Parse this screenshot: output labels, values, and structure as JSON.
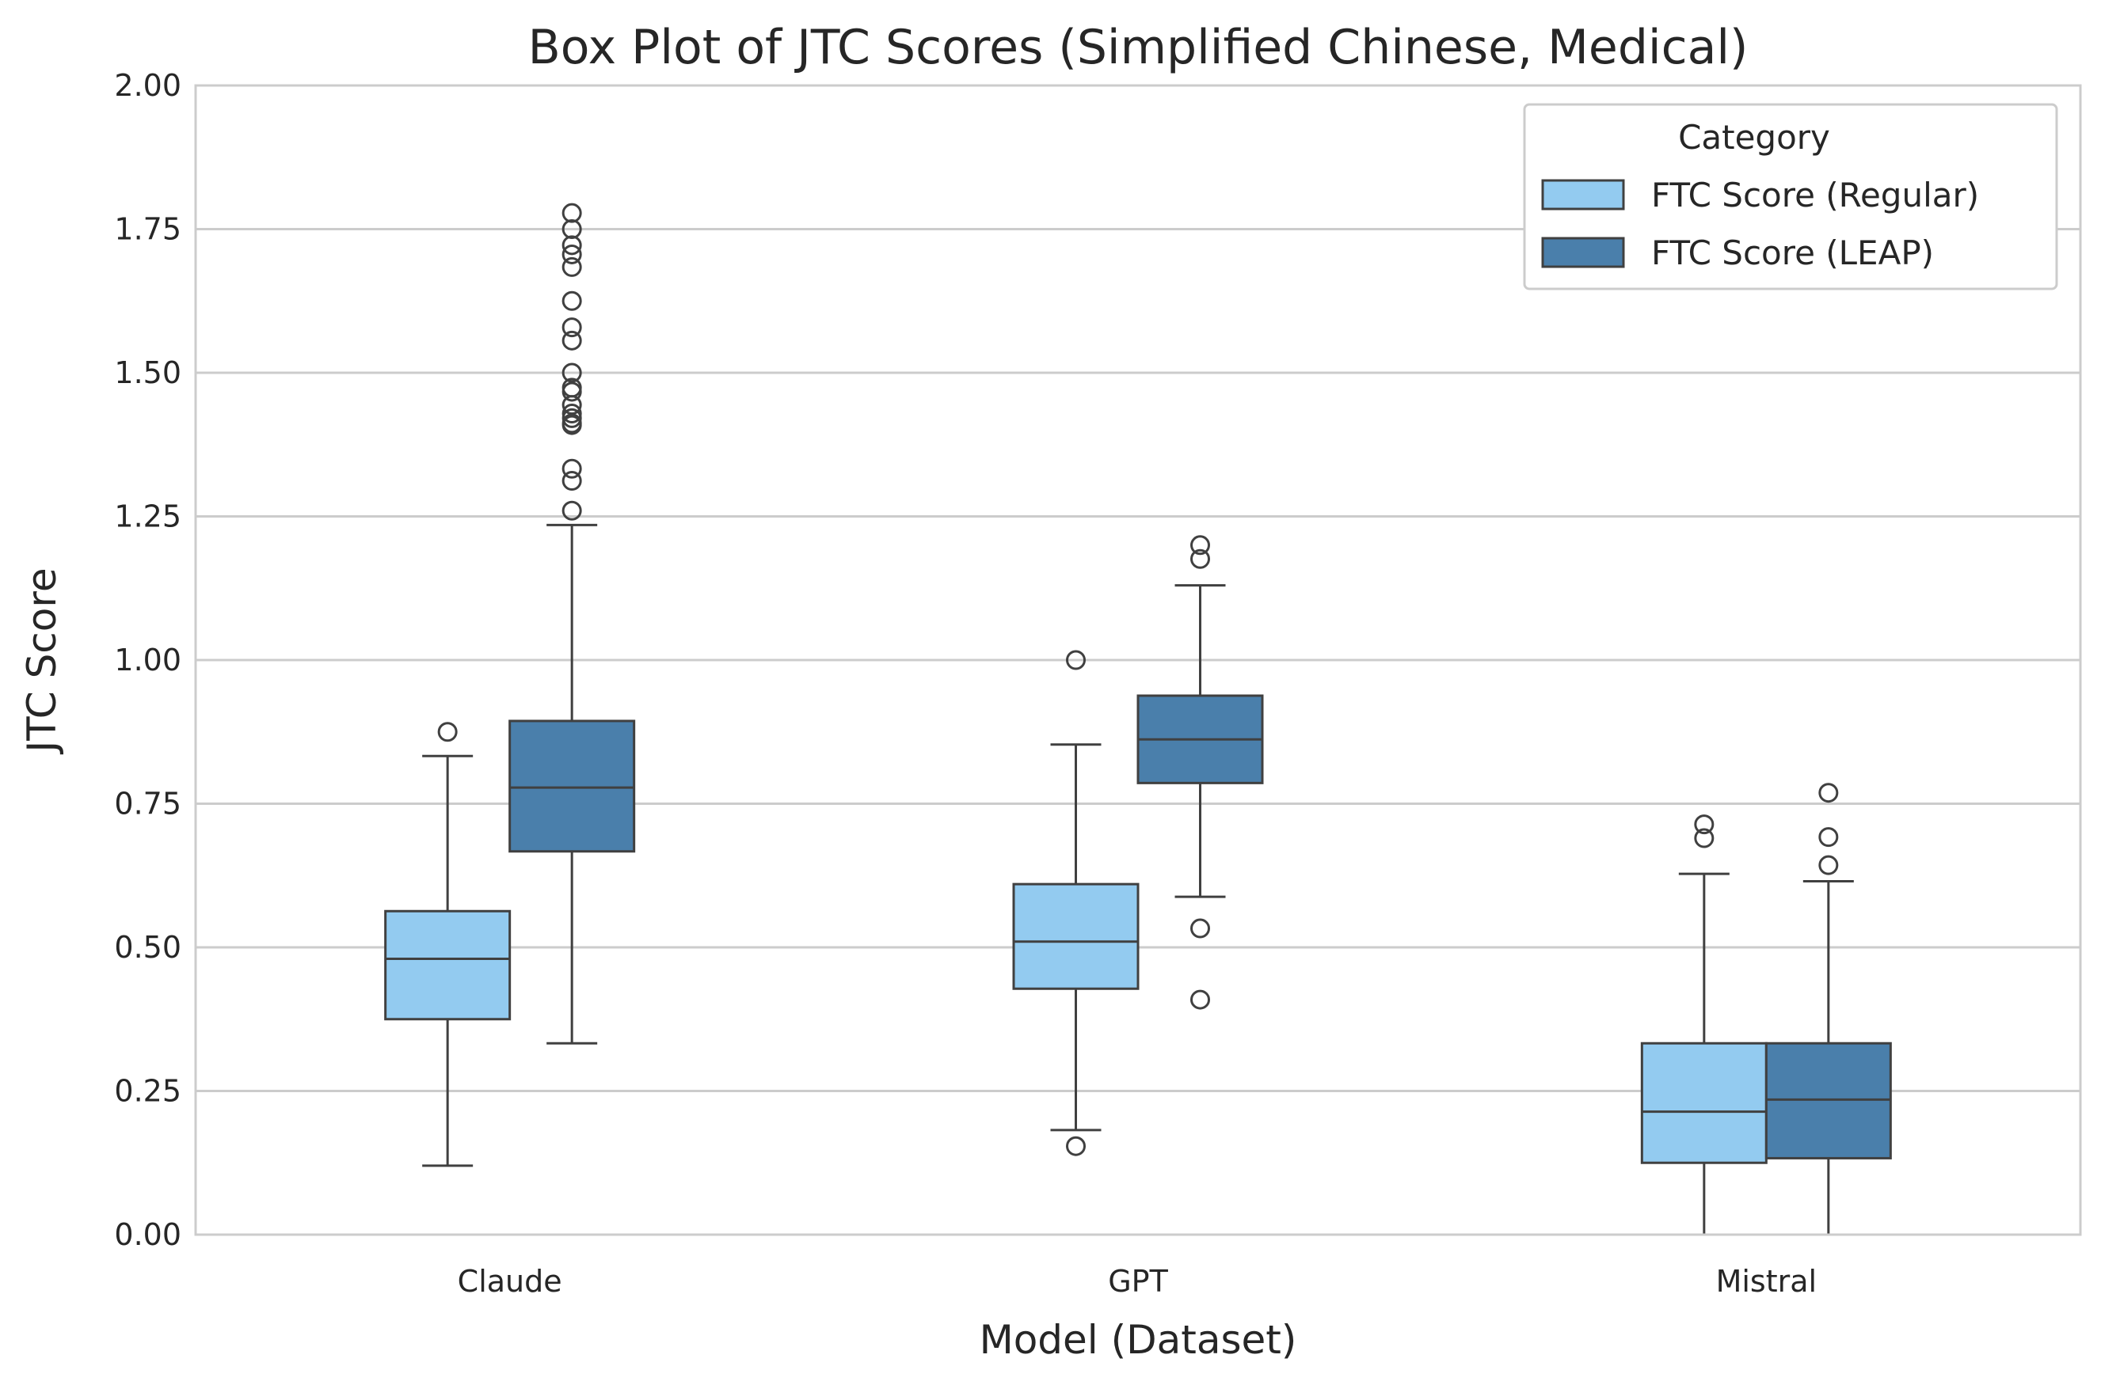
{
  "chart_data": {
    "type": "box",
    "title": "Box Plot of JTC Scores (Simplified Chinese, Medical)",
    "xlabel": "Model (Dataset)",
    "ylabel": "JTC Score",
    "ylim": [
      0,
      2
    ],
    "yticks": [
      "0.00",
      "0.25",
      "0.50",
      "0.75",
      "1.00",
      "1.25",
      "1.50",
      "1.75",
      "2.00"
    ],
    "grid": true,
    "legend_title": "Category",
    "legend_position": "top-right",
    "categories": [
      "Claude",
      "GPT",
      "Mistral"
    ],
    "series": [
      {
        "name": "FTC Score (Regular)",
        "color": "#93cbf0",
        "boxes": [
          {
            "category": "Claude",
            "whisker_low": 0.12,
            "q1": 0.375,
            "median": 0.48,
            "q3": 0.563,
            "whisker_high": 0.833,
            "outliers": [
              0.875
            ]
          },
          {
            "category": "GPT",
            "whisker_low": 0.182,
            "q1": 0.428,
            "median": 0.51,
            "q3": 0.61,
            "whisker_high": 0.853,
            "outliers": [
              1.0,
              0.154
            ]
          },
          {
            "category": "Mistral",
            "whisker_low": 0.0,
            "q1": 0.125,
            "median": 0.214,
            "q3": 0.333,
            "whisker_high": 0.628,
            "outliers": [
              0.714,
              0.69
            ]
          }
        ]
      },
      {
        "name": "FTC Score (LEAP)",
        "color": "#4a7fab",
        "boxes": [
          {
            "category": "Claude",
            "whisker_low": 0.333,
            "q1": 0.667,
            "median": 0.778,
            "q3": 0.894,
            "whisker_high": 1.235,
            "outliers": [
              1.778,
              1.75,
              1.722,
              1.706,
              1.684,
              1.625,
              1.579,
              1.556,
              1.5,
              1.474,
              1.467,
              1.444,
              1.429,
              1.421,
              1.412,
              1.409,
              1.333,
              1.312,
              1.26
            ]
          },
          {
            "category": "GPT",
            "whisker_low": 0.588,
            "q1": 0.786,
            "median": 0.862,
            "q3": 0.938,
            "whisker_high": 1.13,
            "outliers": [
              1.2,
              1.176,
              0.533,
              0.409
            ]
          },
          {
            "category": "Mistral",
            "whisker_low": 0.0,
            "q1": 0.133,
            "median": 0.235,
            "q3": 0.333,
            "whisker_high": 0.615,
            "outliers": [
              0.769,
              0.692,
              0.643
            ]
          }
        ]
      }
    ]
  }
}
